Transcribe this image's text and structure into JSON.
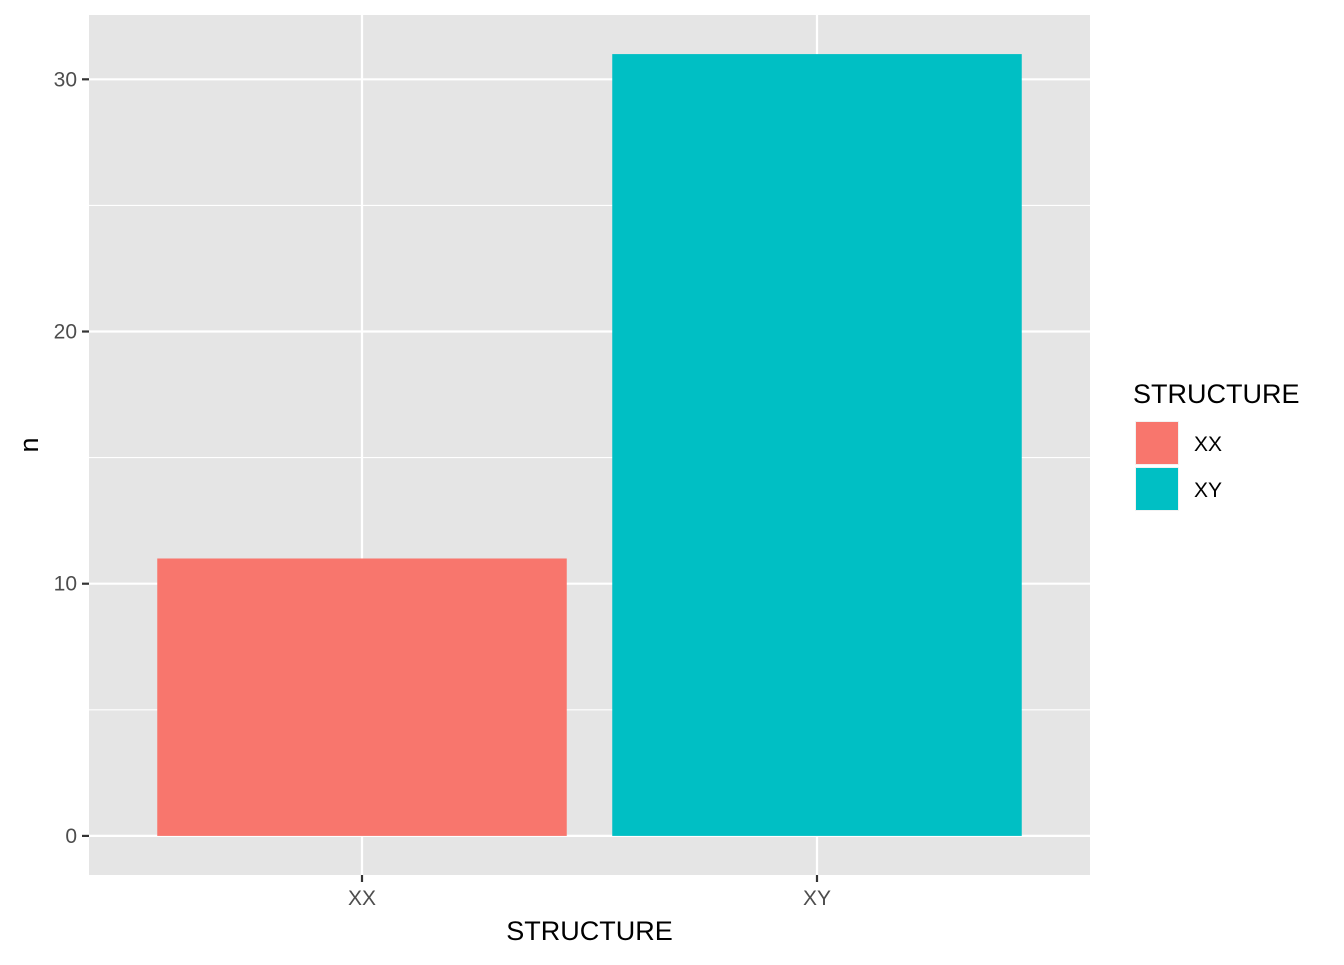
{
  "chart_data": {
    "type": "bar",
    "categories": [
      "XX",
      "XY"
    ],
    "values": [
      11,
      31
    ],
    "colors": [
      "#F8766D",
      "#00BFC4"
    ],
    "title": "",
    "xlabel": "STRUCTURE",
    "ylabel": "n",
    "ylim": [
      -1.55,
      32.55
    ],
    "y_ticks": [
      0,
      10,
      20,
      30
    ],
    "y_tick_labels": [
      "0",
      "10",
      "20",
      "30"
    ],
    "grid": true,
    "panel_background": "#E5E5E5",
    "grid_color": "#FFFFFF",
    "legend": {
      "title": "STRUCTURE",
      "position": "right",
      "entries": [
        {
          "label": "XX",
          "color": "#F8766D"
        },
        {
          "label": "XY",
          "color": "#00BFC4"
        }
      ]
    }
  }
}
